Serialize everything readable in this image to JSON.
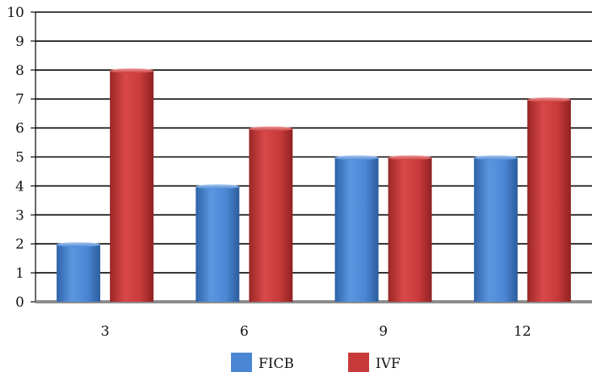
{
  "chart_data": {
    "type": "bar",
    "categories": [
      "3",
      "6",
      "9",
      "12"
    ],
    "series": [
      {
        "name": "FICB",
        "values": [
          2,
          4,
          5,
          5
        ],
        "color": "#4a86d4"
      },
      {
        "name": "IVF",
        "values": [
          8,
          6,
          5,
          7
        ],
        "color": "#c83a3a"
      }
    ],
    "yticks": [
      "0",
      "1",
      "2",
      "3",
      "4",
      "5",
      "6",
      "7",
      "8",
      "9",
      "10"
    ],
    "ylim": [
      0,
      10
    ],
    "grid": true,
    "legend_position": "bottom"
  }
}
